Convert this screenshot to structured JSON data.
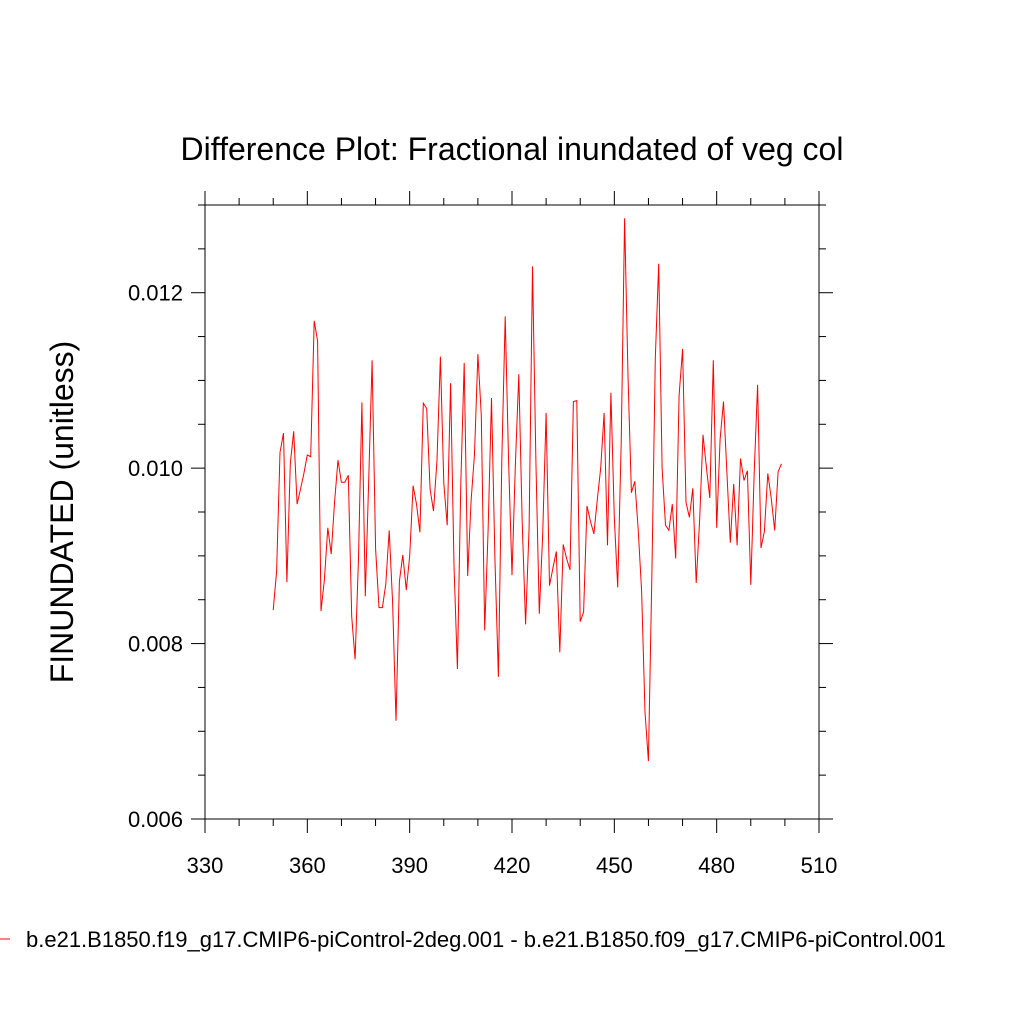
{
  "chart_data": {
    "type": "line",
    "title": "Difference Plot: Fractional inundated of veg col",
    "xlabel": "",
    "ylabel": "FINUNDATED  (unitless)",
    "xlim": [
      330,
      510
    ],
    "ylim": [
      0.006,
      0.013
    ],
    "x_ticks": [
      330,
      360,
      390,
      420,
      450,
      480,
      510
    ],
    "x_tick_labels": [
      "330",
      "360",
      "390",
      "420",
      "450",
      "480",
      "510"
    ],
    "y_ticks": [
      0.006,
      0.008,
      0.01,
      0.012
    ],
    "y_tick_labels": [
      "0.006",
      "0.008",
      "0.010",
      "0.012"
    ],
    "grid": false,
    "series_color": "#ff0000",
    "series": [
      {
        "name": "b.e21.B1850.f19_g17.CMIP6-piControl-2deg.001 - b.e21.B1850.f09_g17.CMIP6-piControl.001",
        "x": [
          350,
          351,
          352,
          353,
          354,
          355,
          356,
          357,
          358,
          359,
          360,
          361,
          362,
          363,
          364,
          365,
          366,
          367,
          368,
          369,
          370,
          371,
          372,
          373,
          374,
          375,
          376,
          377,
          378,
          379,
          380,
          381,
          382,
          383,
          384,
          385,
          386,
          387,
          388,
          389,
          390,
          391,
          392,
          393,
          394,
          395,
          396,
          397,
          398,
          399,
          400,
          401,
          402,
          403,
          404,
          405,
          406,
          407,
          408,
          409,
          410,
          411,
          412,
          413,
          414,
          415,
          416,
          417,
          418,
          419,
          420,
          421,
          422,
          423,
          424,
          425,
          426,
          427,
          428,
          429,
          430,
          431,
          432,
          433,
          434,
          435,
          436,
          437,
          438,
          439,
          440,
          441,
          442,
          443,
          444,
          445,
          446,
          447,
          448,
          449,
          450,
          451,
          452,
          453,
          454,
          455,
          456,
          457,
          458,
          459,
          460,
          461,
          462,
          463,
          464,
          465,
          466,
          467,
          468,
          469,
          470,
          471,
          472,
          473,
          474,
          475,
          476,
          477,
          478,
          479,
          480,
          481,
          482,
          483,
          484,
          485,
          486,
          487,
          488,
          489,
          490,
          491,
          492,
          493,
          494,
          495,
          496,
          497,
          498,
          499
        ],
        "values": [
          0.00838,
          0.00882,
          0.01018,
          0.0104,
          0.0087,
          0.01005,
          0.01042,
          0.00959,
          0.00976,
          0.00994,
          0.01015,
          0.01013,
          0.01168,
          0.01145,
          0.00837,
          0.00873,
          0.00932,
          0.00902,
          0.00962,
          0.01009,
          0.00984,
          0.00984,
          0.00992,
          0.00831,
          0.00782,
          0.00897,
          0.01075,
          0.00854,
          0.00986,
          0.01123,
          0.00908,
          0.00841,
          0.00841,
          0.00868,
          0.00929,
          0.00847,
          0.00712,
          0.00871,
          0.00901,
          0.00861,
          0.009,
          0.0098,
          0.00959,
          0.00927,
          0.01074,
          0.01068,
          0.00976,
          0.00951,
          0.01009,
          0.01127,
          0.00983,
          0.00935,
          0.01097,
          0.00889,
          0.00771,
          0.00982,
          0.0112,
          0.00877,
          0.00963,
          0.01016,
          0.0113,
          0.0106,
          0.00815,
          0.00929,
          0.0108,
          0.00898,
          0.00762,
          0.01009,
          0.01173,
          0.01008,
          0.00878,
          0.01005,
          0.01107,
          0.00938,
          0.00822,
          0.00932,
          0.0123,
          0.01008,
          0.00834,
          0.00925,
          0.01063,
          0.00866,
          0.00886,
          0.00905,
          0.0079,
          0.00913,
          0.00897,
          0.00884,
          0.01076,
          0.01077,
          0.00825,
          0.00836,
          0.00957,
          0.00939,
          0.00925,
          0.00964,
          0.01,
          0.01063,
          0.00912,
          0.01086,
          0.00944,
          0.00864,
          0.01029,
          0.01285,
          0.01105,
          0.00972,
          0.00985,
          0.0093,
          0.0086,
          0.00722,
          0.00666,
          0.0088,
          0.01125,
          0.01233,
          0.01,
          0.00935,
          0.00929,
          0.00959,
          0.00897,
          0.01083,
          0.01136,
          0.00961,
          0.00944,
          0.00977,
          0.00869,
          0.0094,
          0.01038,
          0.01001,
          0.00966,
          0.01123,
          0.00932,
          0.01033,
          0.01076,
          0.00995,
          0.00915,
          0.00982,
          0.00912,
          0.01011,
          0.00986,
          0.00997,
          0.00867,
          0.00995,
          0.01095,
          0.00909,
          0.00928,
          0.00994,
          0.00966,
          0.00929,
          0.00996,
          0.01005
        ]
      }
    ],
    "legend": "b.e21.B1850.f19_g17.CMIP6-piControl-2deg.001 - b.e21.B1850.f09_g17.CMIP6-piControl.001"
  }
}
